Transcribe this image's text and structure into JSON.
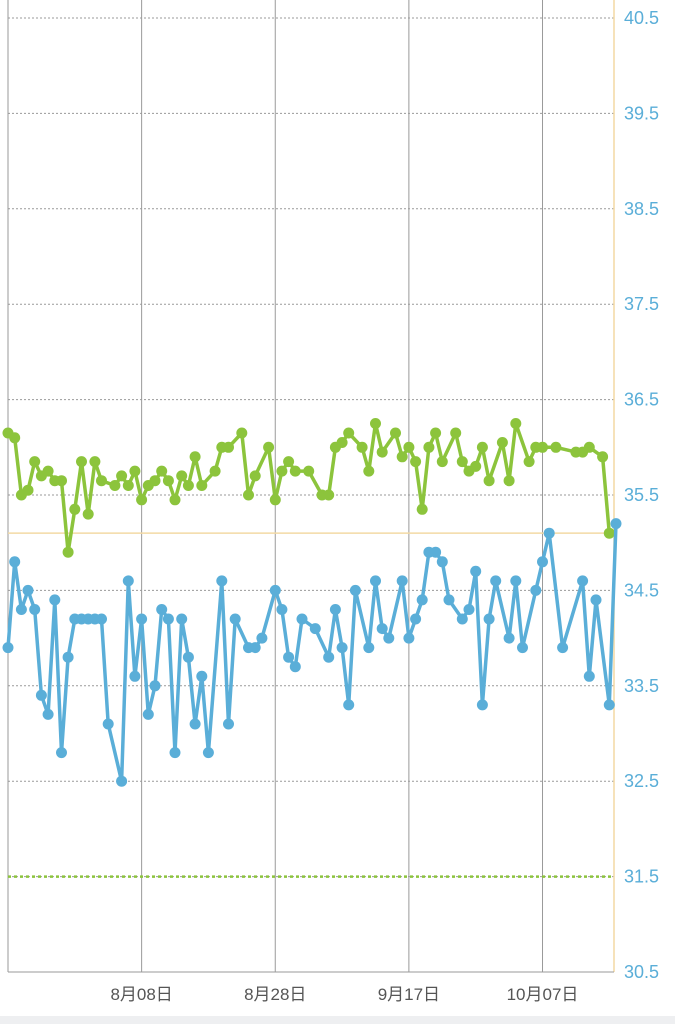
{
  "chart_data": {
    "type": "line",
    "y_ticks": [
      "40.5",
      "39.5",
      "38.5",
      "37.5",
      "36.5",
      "35.5",
      "34.5",
      "33.5",
      "32.5",
      "31.5",
      "30.5"
    ],
    "ylim": [
      30.5,
      40.5
    ],
    "x_ticks": [
      {
        "label": "8月08日",
        "day": 20
      },
      {
        "label": "8月28日",
        "day": 40
      },
      {
        "label": "9月17日",
        "day": 60
      },
      {
        "label": "10月07日",
        "day": 80
      }
    ],
    "xlim": [
      0,
      90.7
    ],
    "grid": true,
    "reference_lines": [
      {
        "value": 35.1,
        "color": "#f3d9a4",
        "style": "solid"
      },
      {
        "value": 31.5,
        "color": "#8cc43c",
        "style": "dotted"
      }
    ],
    "series": [
      {
        "color": "#8cc43c",
        "points": [
          [
            0,
            36.15
          ],
          [
            1,
            36.1
          ],
          [
            2,
            35.5
          ],
          [
            3,
            35.55
          ],
          [
            4,
            35.85
          ],
          [
            5,
            35.7
          ],
          [
            6,
            35.75
          ],
          [
            7,
            35.65
          ],
          [
            8,
            35.65
          ],
          [
            9,
            34.9
          ],
          [
            10,
            35.35
          ],
          [
            11,
            35.85
          ],
          [
            12,
            35.3
          ],
          [
            13,
            35.85
          ],
          [
            14,
            35.65
          ],
          [
            16,
            35.6
          ],
          [
            17,
            35.7
          ],
          [
            18,
            35.6
          ],
          [
            19,
            35.75
          ],
          [
            20,
            35.45
          ],
          [
            21,
            35.6
          ],
          [
            22,
            35.65
          ],
          [
            23,
            35.75
          ],
          [
            24,
            35.65
          ],
          [
            25,
            35.45
          ],
          [
            26,
            35.7
          ],
          [
            27,
            35.6
          ],
          [
            28,
            35.9
          ],
          [
            29,
            35.6
          ],
          [
            31,
            35.75
          ],
          [
            32,
            36.0
          ],
          [
            33,
            36.0
          ],
          [
            35,
            36.15
          ],
          [
            36,
            35.5
          ],
          [
            37,
            35.7
          ],
          [
            39,
            36.0
          ],
          [
            40,
            35.45
          ],
          [
            41,
            35.75
          ],
          [
            42,
            35.85
          ],
          [
            43,
            35.75
          ],
          [
            45,
            35.75
          ],
          [
            47,
            35.5
          ],
          [
            48,
            35.5
          ],
          [
            49,
            36.0
          ],
          [
            50,
            36.05
          ],
          [
            51,
            36.15
          ],
          [
            53,
            36.0
          ],
          [
            54,
            35.75
          ],
          [
            55,
            36.25
          ],
          [
            56,
            35.95
          ],
          [
            58,
            36.15
          ],
          [
            59,
            35.9
          ],
          [
            60,
            36.0
          ],
          [
            61,
            35.85
          ],
          [
            62,
            35.35
          ],
          [
            63,
            36.0
          ],
          [
            64,
            36.15
          ],
          [
            65,
            35.85
          ],
          [
            67,
            36.15
          ],
          [
            68,
            35.85
          ],
          [
            69,
            35.75
          ],
          [
            70,
            35.8
          ],
          [
            71,
            36.0
          ],
          [
            72,
            35.65
          ],
          [
            74,
            36.05
          ],
          [
            75,
            35.65
          ],
          [
            76,
            36.25
          ],
          [
            78,
            35.85
          ],
          [
            79,
            36.0
          ],
          [
            80,
            36.0
          ],
          [
            82,
            36.0
          ],
          [
            85,
            35.95
          ],
          [
            86,
            35.95
          ],
          [
            87,
            36.0
          ],
          [
            89,
            35.9
          ],
          [
            90,
            35.1
          ]
        ]
      },
      {
        "color": "#5aaed8",
        "points": [
          [
            0,
            33.9
          ],
          [
            1,
            34.8
          ],
          [
            2,
            34.3
          ],
          [
            3,
            34.5
          ],
          [
            4,
            34.3
          ],
          [
            5,
            33.4
          ],
          [
            6,
            33.2
          ],
          [
            7,
            34.4
          ],
          [
            8,
            32.8
          ],
          [
            9,
            33.8
          ],
          [
            10,
            34.2
          ],
          [
            11,
            34.2
          ],
          [
            12,
            34.2
          ],
          [
            13,
            34.2
          ],
          [
            14,
            34.2
          ],
          [
            15,
            33.1
          ],
          [
            17,
            32.5
          ],
          [
            18,
            34.6
          ],
          [
            19,
            33.6
          ],
          [
            20,
            34.2
          ],
          [
            21,
            33.2
          ],
          [
            22,
            33.5
          ],
          [
            23,
            34.3
          ],
          [
            24,
            34.2
          ],
          [
            25,
            32.8
          ],
          [
            26,
            34.2
          ],
          [
            27,
            33.8
          ],
          [
            28,
            33.1
          ],
          [
            29,
            33.6
          ],
          [
            30,
            32.8
          ],
          [
            32,
            34.6
          ],
          [
            33,
            33.1
          ],
          [
            34,
            34.2
          ],
          [
            36,
            33.9
          ],
          [
            37,
            33.9
          ],
          [
            38,
            34.0
          ],
          [
            40,
            34.5
          ],
          [
            41,
            34.3
          ],
          [
            42,
            33.8
          ],
          [
            43,
            33.7
          ],
          [
            44,
            34.2
          ],
          [
            46,
            34.1
          ],
          [
            48,
            33.8
          ],
          [
            49,
            34.3
          ],
          [
            50,
            33.9
          ],
          [
            51,
            33.3
          ],
          [
            52,
            34.5
          ],
          [
            54,
            33.9
          ],
          [
            55,
            34.6
          ],
          [
            56,
            34.1
          ],
          [
            57,
            34.0
          ],
          [
            59,
            34.6
          ],
          [
            60,
            34.0
          ],
          [
            61,
            34.2
          ],
          [
            62,
            34.4
          ],
          [
            63,
            34.9
          ],
          [
            64,
            34.9
          ],
          [
            65,
            34.8
          ],
          [
            66,
            34.4
          ],
          [
            68,
            34.2
          ],
          [
            69,
            34.3
          ],
          [
            70,
            34.7
          ],
          [
            71,
            33.3
          ],
          [
            72,
            34.2
          ],
          [
            73,
            34.6
          ],
          [
            75,
            34.0
          ],
          [
            76,
            34.6
          ],
          [
            77,
            33.9
          ],
          [
            79,
            34.5
          ],
          [
            80,
            34.8
          ],
          [
            81,
            35.1
          ],
          [
            83,
            33.9
          ],
          [
            86,
            34.6
          ],
          [
            87,
            33.6
          ],
          [
            88,
            34.4
          ],
          [
            90,
            33.3
          ],
          [
            91,
            35.2
          ]
        ]
      }
    ]
  }
}
